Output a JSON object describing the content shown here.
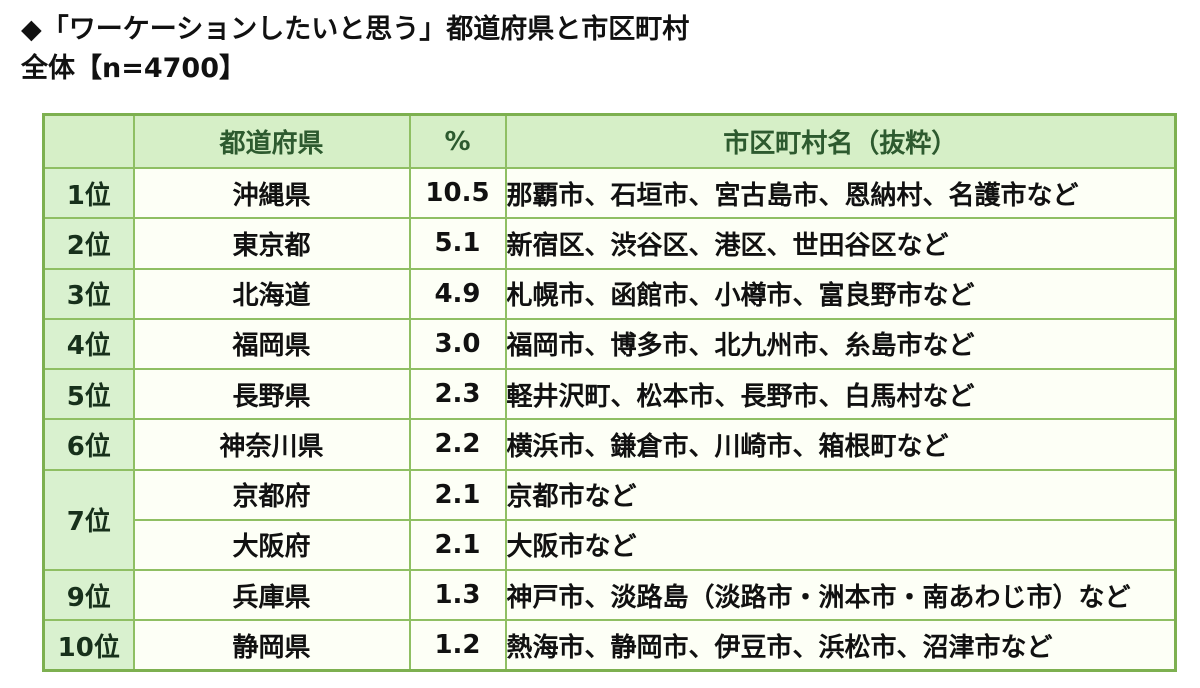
{
  "chart_data": {
    "type": "table",
    "title": "◆「ワーケーションしたいと思う」都道府県と市区町村",
    "subtitle": "全体【n=4700】",
    "sample_size": 4700,
    "columns": [
      "",
      "都道府県",
      "%",
      "市区町村名（抜粋）"
    ],
    "rows": [
      {
        "rank": "1位",
        "prefecture": "沖縄県",
        "percent": "10.5",
        "municipalities": "那覇市、石垣市、宮古島市、恩納村、名護市など"
      },
      {
        "rank": "2位",
        "prefecture": "東京都",
        "percent": "5.1",
        "municipalities": "新宿区、渋谷区、港区、世田谷区など"
      },
      {
        "rank": "3位",
        "prefecture": "北海道",
        "percent": "4.9",
        "municipalities": "札幌市、函館市、小樽市、富良野市など"
      },
      {
        "rank": "4位",
        "prefecture": "福岡県",
        "percent": "3.0",
        "municipalities": "福岡市、博多市、北九州市、糸島市など"
      },
      {
        "rank": "5位",
        "prefecture": "長野県",
        "percent": "2.3",
        "municipalities": "軽井沢町、松本市、長野市、白馬村など"
      },
      {
        "rank": "6位",
        "prefecture": "神奈川県",
        "percent": "2.2",
        "municipalities": "横浜市、鎌倉市、川崎市、箱根町など"
      },
      {
        "rank": "7位",
        "rank_rowspan": 2,
        "prefecture": "京都府",
        "percent": "2.1",
        "municipalities": "京都市など"
      },
      {
        "rank": null,
        "prefecture": "大阪府",
        "percent": "2.1",
        "municipalities": "大阪市など"
      },
      {
        "rank": "9位",
        "prefecture": "兵庫県",
        "percent": "1.3",
        "municipalities": "神戸市、淡路島（淡路市・洲本市・南あわじ市）など"
      },
      {
        "rank": "10位",
        "prefecture": "静岡県",
        "percent": "1.2",
        "municipalities": "熱海市、静岡市、伊豆市、浜松市、沼津市など"
      }
    ],
    "percent_values": [
      10.5,
      5.1,
      4.9,
      3.0,
      2.3,
      2.2,
      2.1,
      2.1,
      1.3,
      1.2
    ],
    "layout": {
      "legend": "none",
      "grid": "on"
    }
  },
  "colors": {
    "header_bg": "#d6efc7",
    "rank_bg": "#d9f1cf",
    "cell_bg": "#fdfff6",
    "border": "#8fbf63",
    "outer_border": "#7db050",
    "header_text": "#2d5a2f",
    "rank_text": "#17301b",
    "body_text": "#111111",
    "title_text": "#111111"
  }
}
